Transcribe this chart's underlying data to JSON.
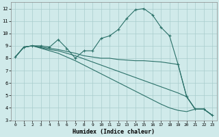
{
  "xlabel": "Humidex (Indice chaleur)",
  "xlim": [
    -0.5,
    23.5
  ],
  "ylim": [
    3,
    12.5
  ],
  "xticks": [
    0,
    1,
    2,
    3,
    4,
    5,
    6,
    7,
    8,
    9,
    10,
    11,
    12,
    13,
    14,
    15,
    16,
    17,
    18,
    19,
    20,
    21,
    22,
    23
  ],
  "yticks": [
    3,
    4,
    5,
    6,
    7,
    8,
    9,
    10,
    11,
    12
  ],
  "bg_color": "#d0eaea",
  "grid_color": "#a8cccc",
  "line_color": "#2a7068",
  "line1_y": [
    8.1,
    8.9,
    9.0,
    9.0,
    8.9,
    9.5,
    8.8,
    8.0,
    8.6,
    8.6,
    9.6,
    9.8,
    10.3,
    11.2,
    11.9,
    12.0,
    11.5,
    10.5,
    9.8,
    7.5,
    4.9,
    3.9,
    3.9,
    3.4
  ],
  "line2_y": [
    8.1,
    8.9,
    9.0,
    8.9,
    8.8,
    8.7,
    8.55,
    8.4,
    8.2,
    8.1,
    8.0,
    8.0,
    7.9,
    7.85,
    7.8,
    7.8,
    7.75,
    7.7,
    7.6,
    7.5,
    4.9,
    3.9,
    3.9,
    3.4
  ],
  "line3_y": [
    8.1,
    8.9,
    9.0,
    8.85,
    8.7,
    8.6,
    8.4,
    8.2,
    7.95,
    7.7,
    7.45,
    7.2,
    6.95,
    6.7,
    6.45,
    6.2,
    5.95,
    5.7,
    5.45,
    5.2,
    4.9,
    3.9,
    3.9,
    3.4
  ],
  "line4_y": [
    8.1,
    8.9,
    9.0,
    8.8,
    8.6,
    8.4,
    8.1,
    7.8,
    7.45,
    7.1,
    6.75,
    6.4,
    6.05,
    5.7,
    5.35,
    5.0,
    4.65,
    4.3,
    4.0,
    3.8,
    3.7,
    3.9,
    3.9,
    3.4
  ]
}
